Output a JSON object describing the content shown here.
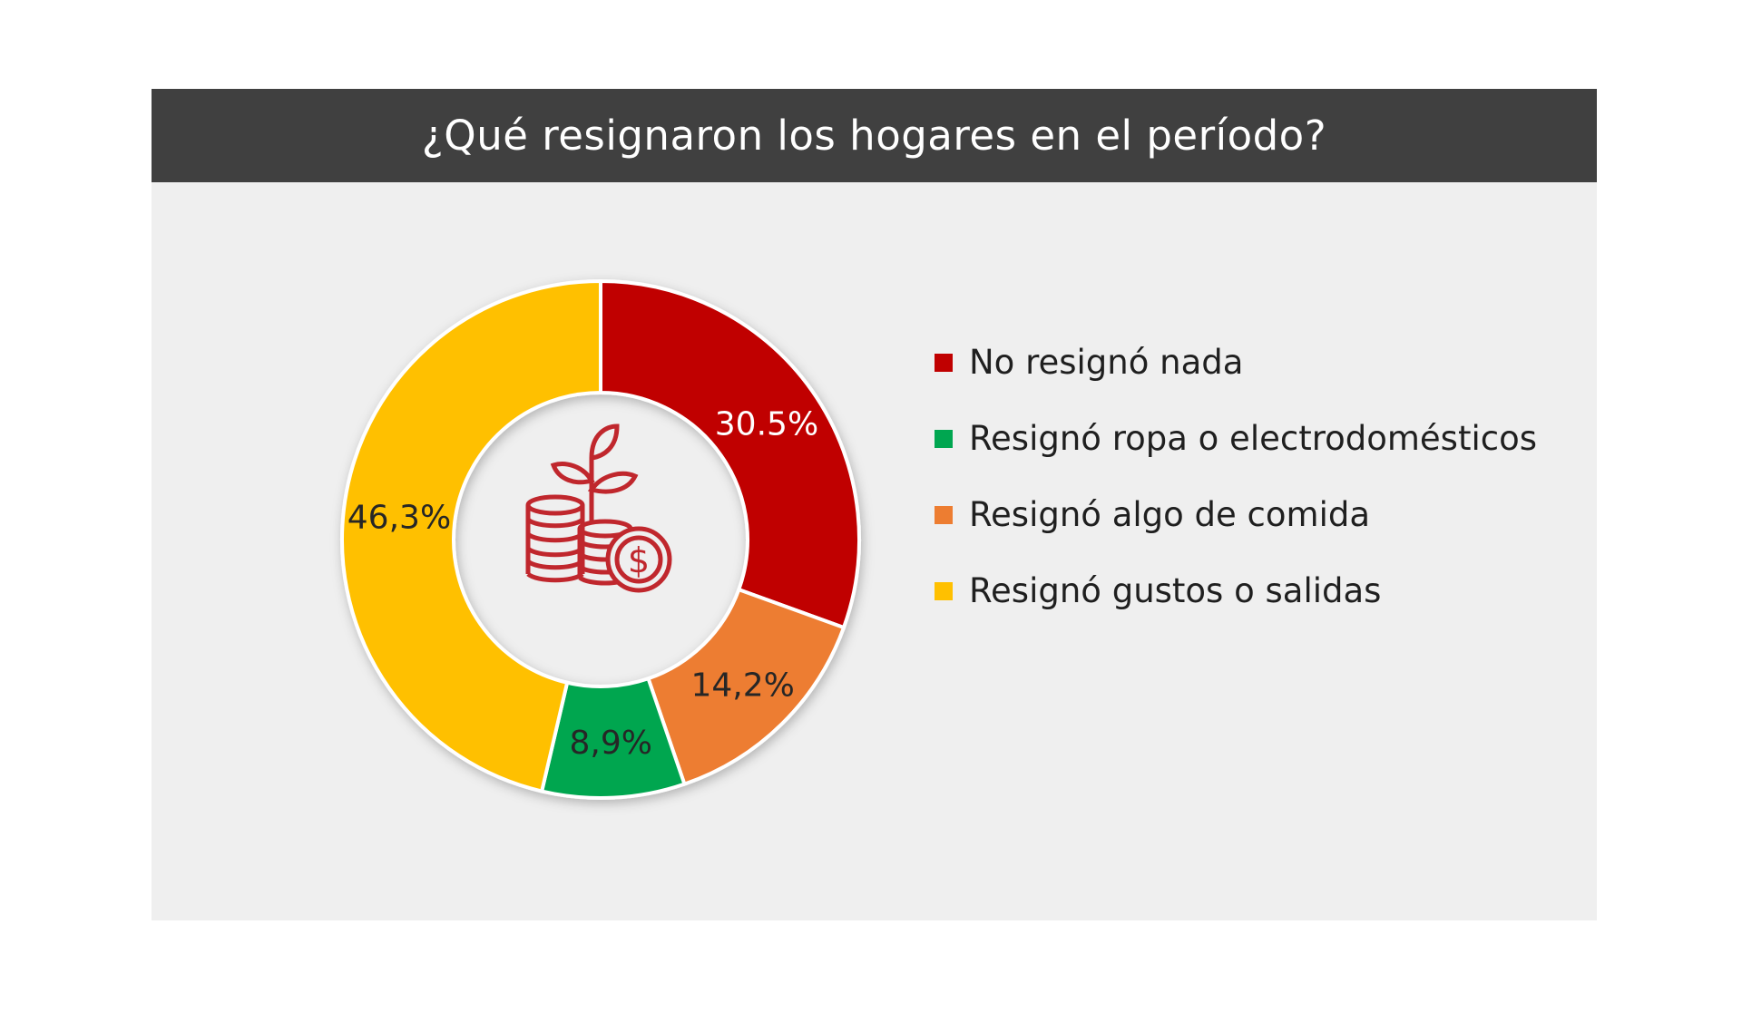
{
  "chart_data": {
    "type": "pie",
    "title": "¿Qué resignaron los hogares en el período?",
    "slices": [
      {
        "label": "No resignó nada",
        "value": 30.5,
        "value_label": "30.5%",
        "color": "#c00000",
        "label_color": "#ffffff"
      },
      {
        "label": "Resignó algo de comida",
        "value": 14.2,
        "value_label": "14,2%",
        "color": "#ed7d31",
        "label_color": "#262626"
      },
      {
        "label": "Resignó ropa o electrodomésticos",
        "value": 8.9,
        "value_label": "8,9%",
        "color": "#00a650",
        "label_color": "#262626"
      },
      {
        "label": "Resignó gustos o salidas",
        "value": 46.3,
        "value_label": "46,3%",
        "color": "#ffc000",
        "label_color": "#262626"
      }
    ],
    "legend": [
      {
        "label": "No resignó nada",
        "color": "#c00000"
      },
      {
        "label": "Resignó ropa o electrodomésticos",
        "color": "#00a650"
      },
      {
        "label": "Resignó algo de comida",
        "color": "#ed7d31"
      },
      {
        "label": "Resignó gustos o salidas",
        "color": "#ffc000"
      }
    ],
    "legend_position": "right",
    "center_icon": "coins-plant-dollar-icon",
    "icon_color": "#c0272d"
  }
}
